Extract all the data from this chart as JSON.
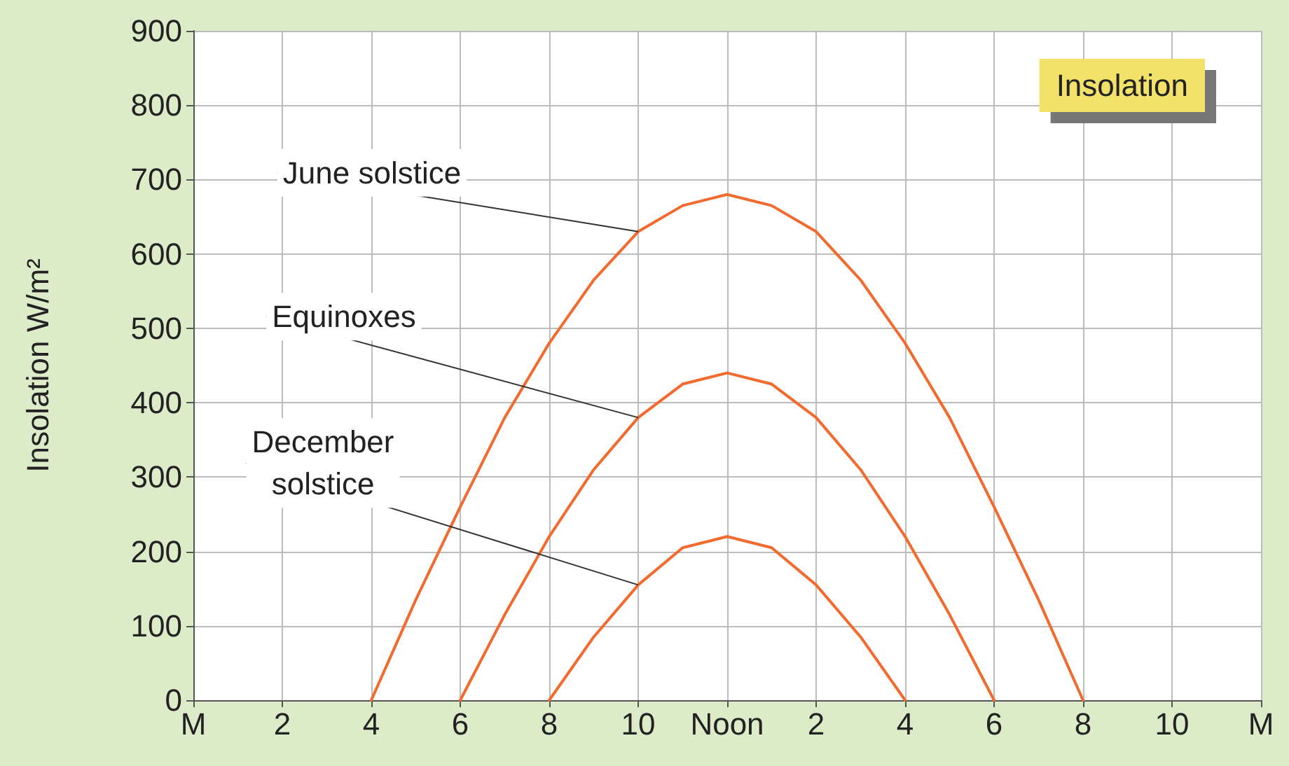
{
  "chart_data": {
    "type": "line",
    "title": "Insolation",
    "ylabel": "Insolation W/m²",
    "categories": [
      "M",
      null,
      "2",
      null,
      "4",
      null,
      "6",
      null,
      "8",
      null,
      "10",
      null,
      "Noon",
      null,
      "2",
      null,
      "4",
      null,
      "6",
      null,
      "8",
      null,
      "10",
      null,
      "M"
    ],
    "ylim": [
      0,
      900
    ],
    "yticks": [
      0,
      100,
      200,
      300,
      400,
      500,
      600,
      700,
      800,
      900
    ],
    "grid": true,
    "legend": false,
    "marker": "none",
    "line_style": "solid",
    "series": [
      {
        "name": "June solstice",
        "color": "#f26a2e",
        "values": [
          null,
          null,
          null,
          null,
          0,
          135,
          260,
          380,
          480,
          565,
          630,
          665,
          680,
          665,
          630,
          565,
          480,
          380,
          260,
          135,
          0,
          null,
          null,
          null,
          null
        ]
      },
      {
        "name": "Equinoxes",
        "color": "#f26a2e",
        "values": [
          null,
          null,
          null,
          null,
          null,
          null,
          0,
          115,
          220,
          310,
          380,
          425,
          440,
          425,
          380,
          310,
          220,
          115,
          0,
          null,
          null,
          null,
          null,
          null,
          null
        ]
      },
      {
        "name": "December\nsolstice",
        "color": "#f26a2e",
        "values": [
          null,
          null,
          null,
          null,
          null,
          null,
          null,
          null,
          0,
          85,
          155,
          205,
          220,
          205,
          155,
          85,
          0,
          null,
          null,
          null,
          null,
          null,
          null,
          null,
          null
        ]
      }
    ]
  }
}
